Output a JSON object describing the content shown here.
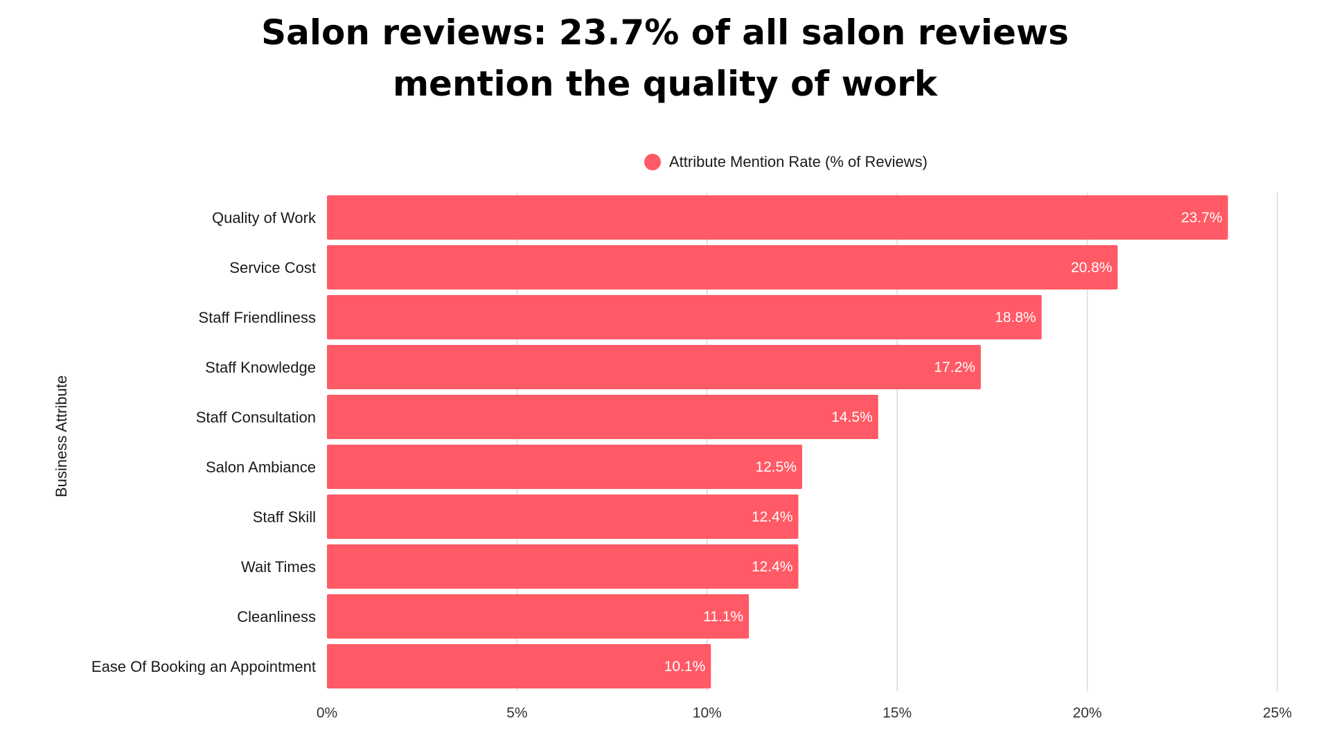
{
  "title_lines": [
    "Salon reviews: 23.7% of all salon reviews",
    "mention the quality of work"
  ],
  "legend": {
    "label": "Attribute Mention Rate (% of Reviews)",
    "color": "#ff5a65"
  },
  "chart_data": {
    "type": "bar",
    "orientation": "horizontal",
    "title": "Salon reviews: 23.7% of all salon reviews mention the quality of work",
    "ylabel": "Business Attribute",
    "xlabel": "",
    "categories": [
      "Quality of Work",
      "Service Cost",
      "Staff Friendliness",
      "Staff Knowledge",
      "Staff Consultation",
      "Salon Ambiance",
      "Staff Skill",
      "Wait Times",
      "Cleanliness",
      "Ease Of Booking an Appointment"
    ],
    "series": [
      {
        "name": "Attribute Mention Rate (% of Reviews)",
        "values": [
          23.7,
          20.8,
          18.8,
          17.2,
          14.5,
          12.5,
          12.4,
          12.4,
          11.1,
          10.1
        ],
        "labels": [
          "23.7%",
          "20.8%",
          "18.8%",
          "17.2%",
          "14.5%",
          "12.5%",
          "12.4%",
          "12.4%",
          "11.1%",
          "10.1%"
        ]
      }
    ],
    "xlim": [
      0,
      25
    ],
    "xticks": [
      0,
      5,
      10,
      15,
      20,
      25
    ],
    "xtick_labels": [
      "0%",
      "5%",
      "10%",
      "15%",
      "20%",
      "25%"
    ],
    "grid": "vertical",
    "legend_position": "top-center",
    "bar_color": "#ff5a65",
    "grid_color": "#d9d9d9"
  }
}
